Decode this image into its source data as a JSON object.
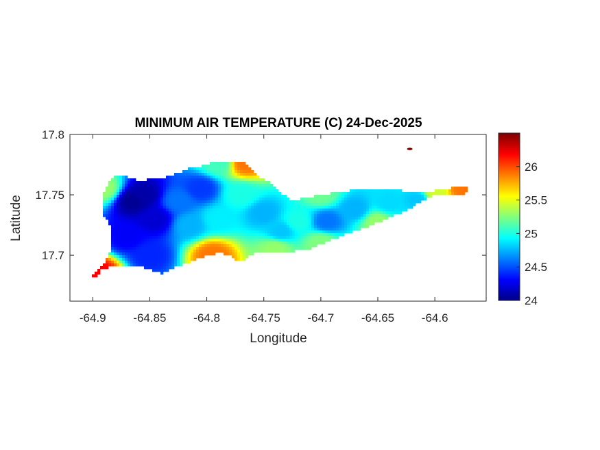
{
  "chart_data": {
    "type": "heatmap",
    "title": "MINIMUM AIR TEMPERATURE (C) 24-Dec-2025",
    "xlabel": "Longitude",
    "ylabel": "Latitude",
    "xlim": [
      -64.92,
      -64.555
    ],
    "ylim": [
      17.662,
      17.8
    ],
    "x_ticks": [
      -64.9,
      -64.85,
      -64.8,
      -64.75,
      -64.7,
      -64.65,
      -64.6
    ],
    "x_tick_labels": [
      "-64.9",
      "-64.85",
      "-64.8",
      "-64.75",
      "-64.7",
      "-64.65",
      "-64.6"
    ],
    "y_ticks": [
      17.7,
      17.75,
      17.8
    ],
    "y_tick_labels": [
      "17.7",
      "17.75",
      "17.8"
    ],
    "colorbar": {
      "min": 24,
      "max": 26.5,
      "ticks": [
        24,
        24.5,
        25,
        25.5,
        26
      ],
      "tick_labels": [
        "24",
        "24.5",
        "25",
        "25.5",
        "26"
      ],
      "colormap": "jet"
    },
    "grid": false,
    "island_outline": [
      [
        -64.899,
        17.68
      ],
      [
        -64.892,
        17.688
      ],
      [
        -64.885,
        17.69
      ],
      [
        -64.87,
        17.69
      ],
      [
        -64.858,
        17.691
      ],
      [
        -64.848,
        17.688
      ],
      [
        -64.84,
        17.685
      ],
      [
        -64.83,
        17.689
      ],
      [
        -64.815,
        17.694
      ],
      [
        -64.803,
        17.699
      ],
      [
        -64.79,
        17.702
      ],
      [
        -64.78,
        17.7
      ],
      [
        -64.773,
        17.695
      ],
      [
        -64.768,
        17.695
      ],
      [
        -64.763,
        17.7
      ],
      [
        -64.75,
        17.703
      ],
      [
        -64.74,
        17.702
      ],
      [
        -64.73,
        17.702
      ],
      [
        -64.72,
        17.704
      ],
      [
        -64.71,
        17.705
      ],
      [
        -64.7,
        17.709
      ],
      [
        -64.69,
        17.713
      ],
      [
        -64.68,
        17.717
      ],
      [
        -64.67,
        17.72
      ],
      [
        -64.66,
        17.723
      ],
      [
        -64.65,
        17.727
      ],
      [
        -64.64,
        17.731
      ],
      [
        -64.63,
        17.735
      ],
      [
        -64.62,
        17.74
      ],
      [
        -64.61,
        17.746
      ],
      [
        -64.6,
        17.75
      ],
      [
        -64.588,
        17.75
      ],
      [
        -64.575,
        17.75
      ],
      [
        -64.568,
        17.755
      ],
      [
        -64.58,
        17.757
      ],
      [
        -64.595,
        17.754
      ],
      [
        -64.61,
        17.752
      ],
      [
        -64.625,
        17.753
      ],
      [
        -64.64,
        17.755
      ],
      [
        -64.655,
        17.755
      ],
      [
        -64.67,
        17.754
      ],
      [
        -64.685,
        17.752
      ],
      [
        -64.7,
        17.75
      ],
      [
        -64.715,
        17.747
      ],
      [
        -64.725,
        17.745
      ],
      [
        -64.735,
        17.752
      ],
      [
        -64.745,
        17.76
      ],
      [
        -64.755,
        17.766
      ],
      [
        -64.762,
        17.772
      ],
      [
        -64.766,
        17.776
      ],
      [
        -64.775,
        17.778
      ],
      [
        -64.785,
        17.778
      ],
      [
        -64.795,
        17.777
      ],
      [
        -64.805,
        17.774
      ],
      [
        -64.815,
        17.772
      ],
      [
        -64.825,
        17.768
      ],
      [
        -64.835,
        17.765
      ],
      [
        -64.848,
        17.763
      ],
      [
        -64.86,
        17.762
      ],
      [
        -64.87,
        17.765
      ],
      [
        -64.88,
        17.766
      ],
      [
        -64.885,
        17.761
      ],
      [
        -64.89,
        17.752
      ],
      [
        -64.892,
        17.742
      ],
      [
        -64.89,
        17.733
      ],
      [
        -64.885,
        17.724
      ],
      [
        -64.883,
        17.713
      ],
      [
        -64.885,
        17.703
      ],
      [
        -64.89,
        17.694
      ],
      [
        -64.9,
        17.683
      ]
    ],
    "temperature_anchors": [
      {
        "lon": -64.865,
        "lat": 17.745,
        "value": 24.05
      },
      {
        "lon": -64.855,
        "lat": 17.75,
        "value": 24.1
      },
      {
        "lon": -64.845,
        "lat": 17.73,
        "value": 24.2
      },
      {
        "lon": -64.87,
        "lat": 17.715,
        "value": 24.3
      },
      {
        "lon": -64.85,
        "lat": 17.7,
        "value": 24.4
      },
      {
        "lon": -64.825,
        "lat": 17.745,
        "value": 24.6
      },
      {
        "lon": -64.805,
        "lat": 17.755,
        "value": 24.45
      },
      {
        "lon": -64.815,
        "lat": 17.725,
        "value": 24.75
      },
      {
        "lon": -64.79,
        "lat": 17.73,
        "value": 24.9
      },
      {
        "lon": -64.77,
        "lat": 17.75,
        "value": 25.0
      },
      {
        "lon": -64.75,
        "lat": 17.735,
        "value": 24.75
      },
      {
        "lon": -64.735,
        "lat": 17.72,
        "value": 24.8
      },
      {
        "lon": -64.72,
        "lat": 17.728,
        "value": 25.0
      },
      {
        "lon": -64.695,
        "lat": 17.728,
        "value": 24.6
      },
      {
        "lon": -64.67,
        "lat": 17.738,
        "value": 24.75
      },
      {
        "lon": -64.64,
        "lat": 17.743,
        "value": 24.85
      },
      {
        "lon": -64.615,
        "lat": 17.746,
        "value": 24.8
      },
      {
        "lon": -64.6,
        "lat": 17.752,
        "value": 25.45
      },
      {
        "lon": -64.575,
        "lat": 17.755,
        "value": 25.9
      },
      {
        "lon": -64.795,
        "lat": 17.7,
        "value": 25.9
      },
      {
        "lon": -64.89,
        "lat": 17.755,
        "value": 25.3
      },
      {
        "lon": -64.895,
        "lat": 17.685,
        "value": 26.2
      },
      {
        "lon": -64.766,
        "lat": 17.776,
        "value": 25.9
      },
      {
        "lon": -64.74,
        "lat": 17.705,
        "value": 25.3
      },
      {
        "lon": -64.7,
        "lat": 17.71,
        "value": 25.25
      },
      {
        "lon": -64.65,
        "lat": 17.727,
        "value": 25.3
      },
      {
        "lon": -64.79,
        "lat": 17.776,
        "value": 25.1
      },
      {
        "lon": -64.7,
        "lat": 17.75,
        "value": 25.2
      }
    ],
    "isolated_points": [
      {
        "lon": -64.622,
        "lat": 17.788,
        "value": 26.5
      }
    ]
  }
}
